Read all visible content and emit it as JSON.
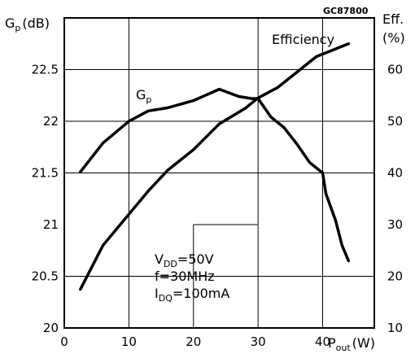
{
  "chart_data": {
    "type": "line",
    "figure_code": "GC87800",
    "x_axis": {
      "ticks": [
        "0",
        "10",
        "20",
        "30",
        "40"
      ],
      "range": [
        0,
        48
      ],
      "label": {
        "main": "P",
        "sub": "out",
        "unit": "(W)"
      }
    },
    "y_left": {
      "ticks": [
        "20",
        "20.5",
        "21",
        "21.5",
        "22",
        "22.5"
      ],
      "range": [
        20,
        23
      ],
      "label": {
        "main": "G",
        "sub": "p",
        "unit": "(dB)"
      }
    },
    "y_right": {
      "ticks": [
        "10",
        "20",
        "30",
        "40",
        "50",
        "60"
      ],
      "range": [
        10,
        70
      ],
      "label": {
        "line1": "Eff.",
        "line2": "(%)"
      }
    },
    "grid": true,
    "series": [
      {
        "name": "Gp",
        "label": {
          "main": "G",
          "sub": "p"
        },
        "axis": "left",
        "points": [
          [
            2.5,
            21.51
          ],
          [
            6,
            21.79
          ],
          [
            10,
            22.0
          ],
          [
            13,
            22.1
          ],
          [
            16,
            22.13
          ],
          [
            20,
            22.2
          ],
          [
            24,
            22.31
          ],
          [
            27,
            22.24
          ],
          [
            29,
            22.22
          ],
          [
            30,
            22.22
          ],
          [
            32,
            22.04
          ],
          [
            34,
            21.94
          ],
          [
            36,
            21.78
          ],
          [
            38,
            21.6
          ],
          [
            40,
            21.5
          ],
          [
            40.5,
            21.3
          ],
          [
            42,
            21.04
          ],
          [
            43,
            20.8
          ],
          [
            44,
            20.65
          ]
        ]
      },
      {
        "name": "Efficiency",
        "label": {
          "main": "Efficiency"
        },
        "axis": "right",
        "points": [
          [
            2.5,
            17.5
          ],
          [
            6,
            26
          ],
          [
            10,
            32
          ],
          [
            13,
            36.5
          ],
          [
            16,
            40.5
          ],
          [
            20,
            44.5
          ],
          [
            24,
            49.5
          ],
          [
            28,
            52.5
          ],
          [
            30,
            54.5
          ],
          [
            33,
            56.5
          ],
          [
            36,
            59.5
          ],
          [
            39,
            62.5
          ],
          [
            42,
            64
          ],
          [
            44,
            65
          ]
        ]
      }
    ],
    "annotation": {
      "lines": [
        {
          "main": "V",
          "sub": "DD",
          "rest": "=50V"
        },
        {
          "main": "f=30MHz",
          "sub": "",
          "rest": ""
        },
        {
          "main": "I",
          "sub": "DQ",
          "rest": "=100mA"
        }
      ]
    }
  }
}
